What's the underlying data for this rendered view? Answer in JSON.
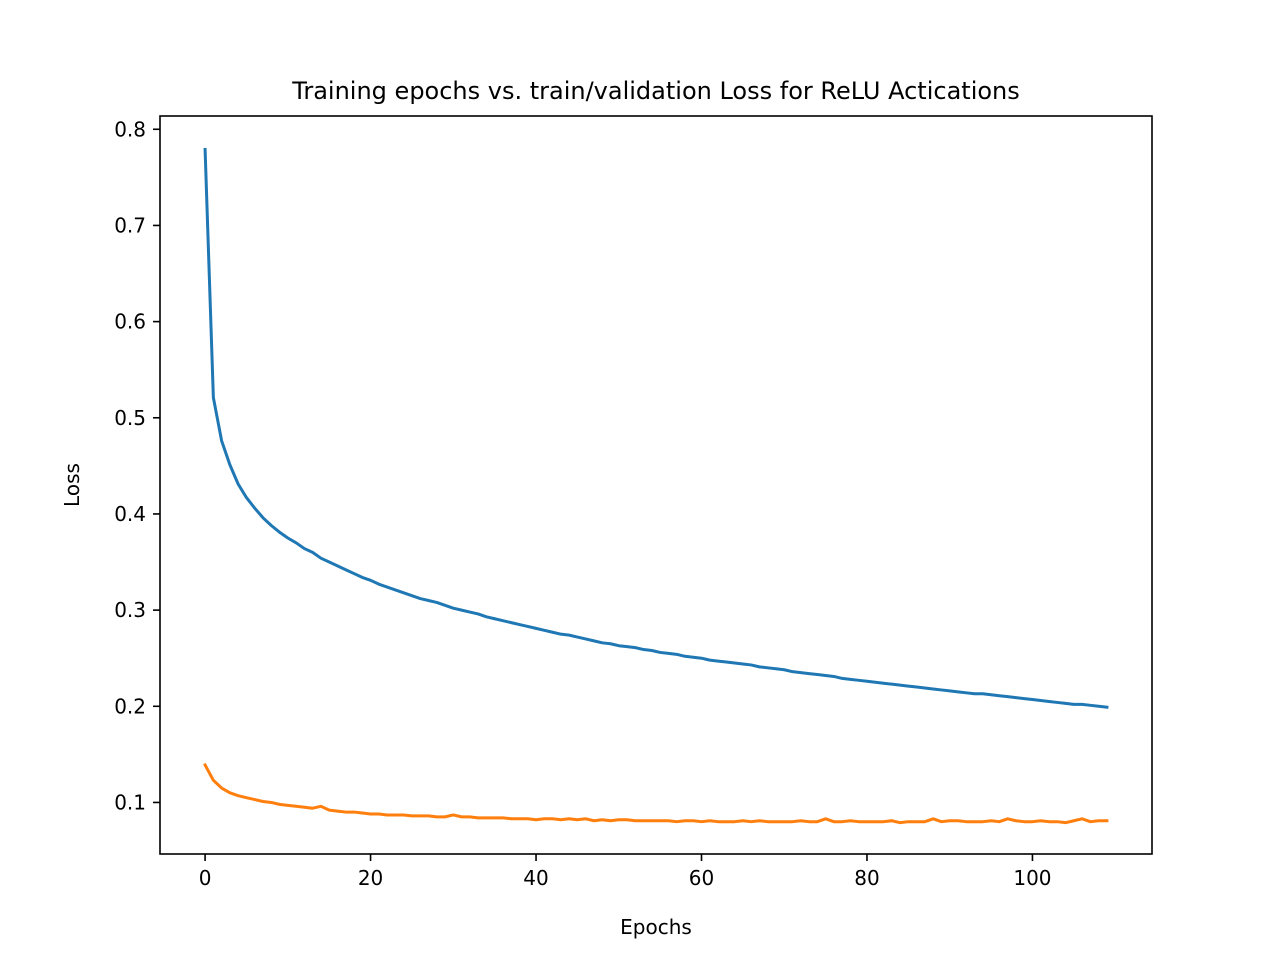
{
  "chart_data": {
    "type": "line",
    "title": "Training epochs vs. train/validation Loss for ReLU Actications",
    "xlabel": "Epochs",
    "ylabel": "Loss",
    "xlim": [
      -5.45,
      114.45
    ],
    "ylim": [
      0.0464,
      0.8138
    ],
    "x_ticks": [
      0,
      20,
      40,
      60,
      80,
      100
    ],
    "y_ticks": [
      0.1,
      0.2,
      0.3,
      0.4,
      0.5,
      0.6,
      0.7,
      0.8
    ],
    "grid": false,
    "legend": "none",
    "colors": [
      "#1f77b4",
      "#ff7f0e"
    ],
    "series": [
      {
        "values": [
          0.779,
          0.521,
          0.476,
          0.451,
          0.431,
          0.417,
          0.406,
          0.396,
          0.388,
          0.381,
          0.375,
          0.37,
          0.364,
          0.36,
          0.354,
          0.35,
          0.346,
          0.342,
          0.338,
          0.334,
          0.331,
          0.327,
          0.324,
          0.321,
          0.318,
          0.315,
          0.312,
          0.31,
          0.308,
          0.305,
          0.302,
          0.3,
          0.298,
          0.296,
          0.293,
          0.291,
          0.289,
          0.287,
          0.285,
          0.283,
          0.281,
          0.279,
          0.277,
          0.275,
          0.274,
          0.272,
          0.27,
          0.268,
          0.266,
          0.265,
          0.263,
          0.262,
          0.261,
          0.259,
          0.258,
          0.256,
          0.255,
          0.254,
          0.252,
          0.251,
          0.25,
          0.248,
          0.247,
          0.246,
          0.245,
          0.244,
          0.243,
          0.241,
          0.24,
          0.239,
          0.238,
          0.236,
          0.235,
          0.234,
          0.233,
          0.232,
          0.231,
          0.229,
          0.228,
          0.227,
          0.226,
          0.225,
          0.224,
          0.223,
          0.222,
          0.221,
          0.22,
          0.219,
          0.218,
          0.217,
          0.216,
          0.215,
          0.214,
          0.213,
          0.213,
          0.212,
          0.211,
          0.21,
          0.209,
          0.208,
          0.207,
          0.206,
          0.205,
          0.204,
          0.203,
          0.202,
          0.202,
          0.201,
          0.2,
          0.199
        ]
      },
      {
        "values": [
          0.139,
          0.123,
          0.115,
          0.11,
          0.107,
          0.105,
          0.103,
          0.101,
          0.1,
          0.098,
          0.097,
          0.096,
          0.095,
          0.094,
          0.096,
          0.092,
          0.091,
          0.09,
          0.09,
          0.089,
          0.088,
          0.088,
          0.087,
          0.087,
          0.087,
          0.086,
          0.086,
          0.086,
          0.085,
          0.085,
          0.087,
          0.085,
          0.085,
          0.084,
          0.084,
          0.084,
          0.084,
          0.083,
          0.083,
          0.083,
          0.082,
          0.083,
          0.083,
          0.082,
          0.083,
          0.082,
          0.083,
          0.081,
          0.082,
          0.081,
          0.082,
          0.082,
          0.081,
          0.081,
          0.081,
          0.081,
          0.081,
          0.08,
          0.081,
          0.081,
          0.08,
          0.081,
          0.08,
          0.08,
          0.08,
          0.081,
          0.08,
          0.081,
          0.08,
          0.08,
          0.08,
          0.08,
          0.081,
          0.08,
          0.08,
          0.083,
          0.08,
          0.08,
          0.081,
          0.08,
          0.08,
          0.08,
          0.08,
          0.081,
          0.079,
          0.08,
          0.08,
          0.08,
          0.083,
          0.08,
          0.081,
          0.081,
          0.08,
          0.08,
          0.08,
          0.081,
          0.08,
          0.083,
          0.081,
          0.08,
          0.08,
          0.081,
          0.08,
          0.08,
          0.079,
          0.081,
          0.083,
          0.08,
          0.081,
          0.081
        ]
      }
    ]
  }
}
